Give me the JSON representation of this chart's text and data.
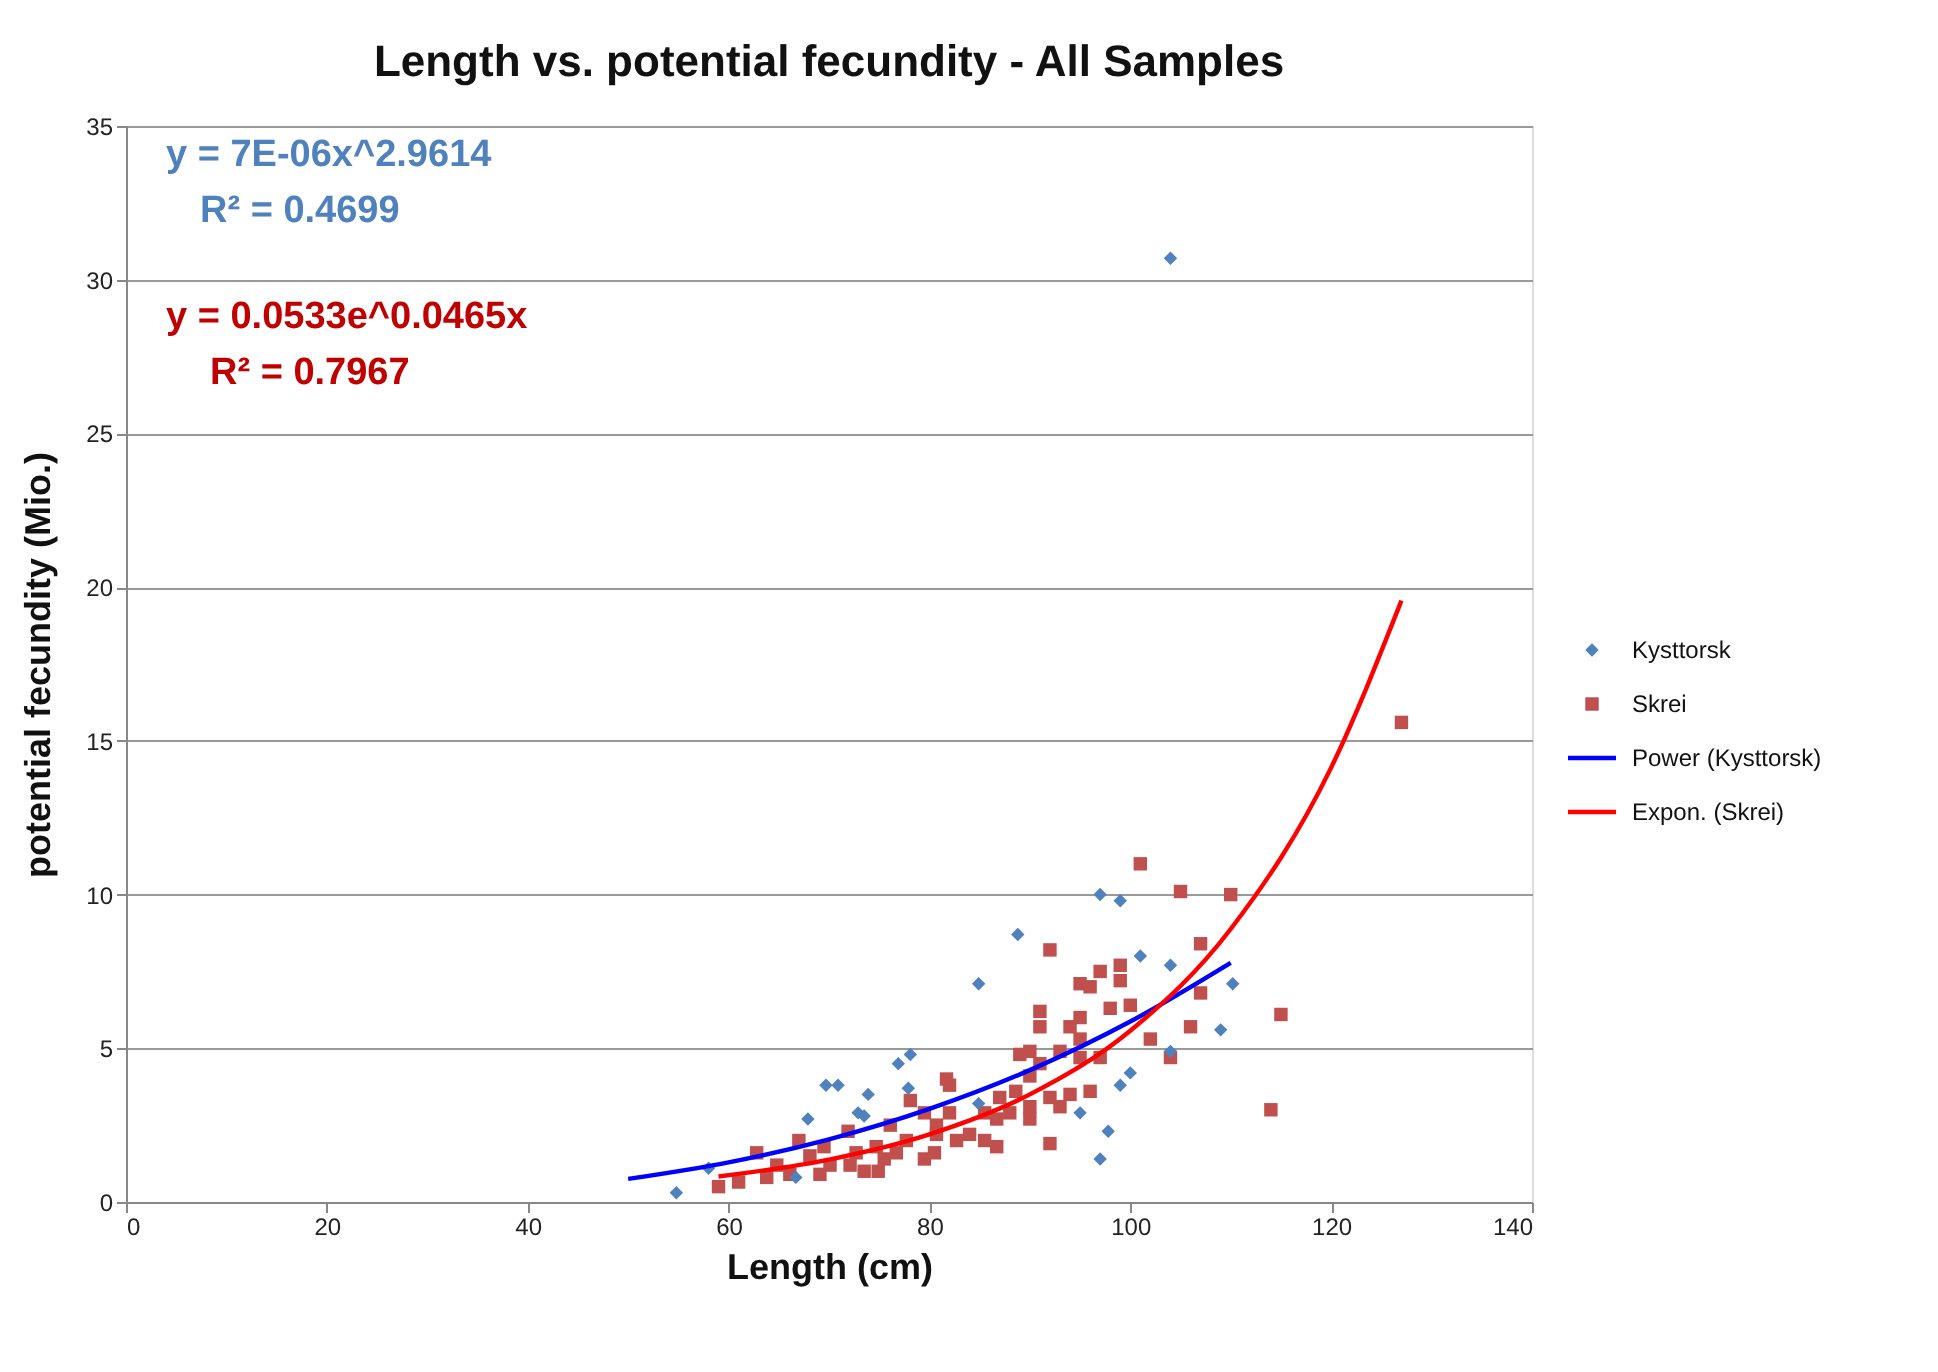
{
  "chart_data": {
    "type": "scatter",
    "title": "Length vs. potential fecundity - All Samples",
    "xlabel": "Length (cm)",
    "ylabel": "potential fecundity (Mio.)",
    "xlim": [
      0,
      140
    ],
    "xticks": [
      0,
      20,
      40,
      60,
      80,
      100,
      120,
      140
    ],
    "ylim": [
      0,
      35
    ],
    "yticks": [
      0,
      5,
      10,
      15,
      20,
      25,
      30,
      35
    ],
    "grid": "y",
    "legend": "right",
    "annotations": [
      "y = 7E-06x^2.9614",
      "R² = 0.4699",
      "y = 0.0533e^0.0465x",
      "R² = 0.7967"
    ],
    "series": [
      {
        "name": "Kysttorsk",
        "marker": "diamond",
        "color": "#4f81bd",
        "x": [
          54.8,
          58,
          66.7,
          67.9,
          69.7,
          70.9,
          72.9,
          73.5,
          73.9,
          76.9,
          77.9,
          78.1,
          84.9,
          84.9,
          88.8,
          95,
          97,
          97,
          97.8,
          99,
          99,
          100,
          101,
          104,
          104,
          104,
          109,
          110.2
        ],
        "values": [
          0.3,
          1.1,
          0.8,
          2.7,
          3.8,
          3.8,
          2.9,
          2.8,
          3.5,
          4.5,
          3.7,
          4.8,
          7.1,
          3.2,
          8.7,
          2.9,
          10.0,
          1.4,
          2.3,
          9.8,
          3.8,
          4.2,
          8.0,
          7.7,
          4.9,
          30.7,
          5.6,
          7.1
        ]
      },
      {
        "name": "Skrei",
        "marker": "square",
        "color": "#c0504d",
        "x": [
          59,
          61,
          62.8,
          63.8,
          64.8,
          66.1,
          67,
          68.1,
          69.1,
          70.1,
          69.5,
          71.9,
          72.7,
          73.5,
          74.7,
          74.9,
          76.1,
          76.7,
          77.7,
          78.1,
          79.5,
          80.7,
          81.7,
          80.5,
          79.5,
          75.5,
          72.1,
          101,
          105,
          110,
          92,
          107,
          99,
          97,
          95,
          96,
          99,
          107,
          115,
          100,
          98,
          91,
          95,
          91,
          94,
          106,
          102,
          104,
          95,
          93,
          90,
          89,
          91,
          95,
          97,
          90,
          96,
          94,
          92,
          93,
          90,
          90,
          92,
          88.6,
          87,
          88,
          86.7,
          85.5,
          85.5,
          86.7,
          84,
          82,
          82,
          82.7,
          80.7,
          114,
          127
        ],
        "values": [
          0.5,
          0.65,
          1.6,
          0.8,
          1.2,
          0.9,
          2.0,
          1.5,
          0.9,
          1.2,
          1.8,
          2.3,
          1.6,
          1.0,
          1.8,
          1.0,
          2.5,
          1.6,
          2.0,
          3.3,
          2.9,
          2.5,
          4.0,
          1.6,
          1.4,
          1.4,
          1.2,
          11.0,
          10.1,
          10.0,
          8.2,
          8.4,
          7.7,
          7.5,
          7.1,
          7.0,
          7.2,
          6.8,
          6.1,
          6.4,
          6.3,
          6.2,
          6.0,
          5.7,
          5.7,
          5.7,
          5.3,
          4.7,
          5.3,
          4.9,
          4.9,
          4.8,
          4.5,
          4.7,
          4.7,
          4.1,
          3.6,
          3.5,
          3.4,
          3.1,
          3.1,
          2.7,
          1.9,
          3.6,
          3.4,
          2.9,
          2.7,
          2.9,
          2.0,
          1.8,
          2.2,
          3.8,
          2.9,
          2.0,
          2.2,
          3.0,
          15.6
        ]
      },
      {
        "name": "Power (Kysttorsk)",
        "type": "line",
        "line_style": "solid",
        "color": "#0000ff",
        "x": [
          50,
          60,
          70,
          80,
          90,
          100,
          110
        ],
        "values": [
          0.75,
          1.29,
          2.04,
          3.03,
          4.29,
          5.87,
          7.78
        ]
      },
      {
        "name": "Expon. (Skrei)",
        "type": "line",
        "line_style": "solid",
        "color": "#ff0000",
        "x": [
          59,
          70,
          80,
          90,
          100,
          110,
          120,
          127
        ],
        "values": [
          0.83,
          1.38,
          2.2,
          3.5,
          5.57,
          8.88,
          14.13,
          19.56
        ]
      }
    ]
  }
}
